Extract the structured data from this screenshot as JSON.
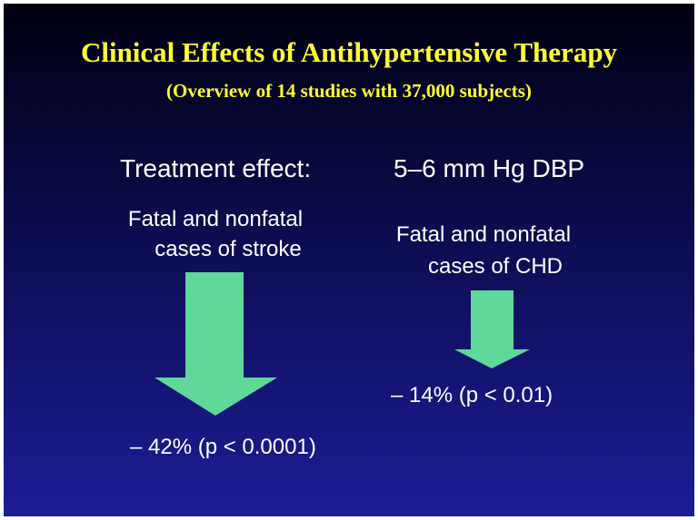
{
  "title": "Clinical Effects of Antihypertensive Therapy",
  "subtitle": "(Overview of 14 studies with 37,000 subjects)",
  "treatment": {
    "label": "Treatment effect:",
    "value": "5–6 mm Hg DBP"
  },
  "outcomes": [
    {
      "label_lines": [
        "Fatal and nonfatal",
        "cases of stroke"
      ],
      "result": "– 42% (p < 0.0001)"
    },
    {
      "label_lines": [
        "Fatal and nonfatal",
        "cases of CHD"
      ],
      "result": "– 14% (p < 0.01)"
    }
  ]
}
